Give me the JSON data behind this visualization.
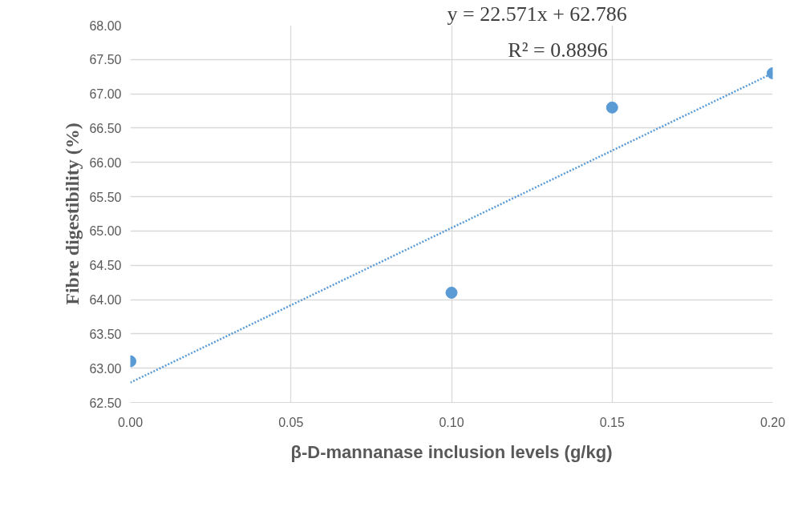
{
  "chart_data": {
    "type": "scatter",
    "xlabel": "β-D-mannanase inclusion levels (g/kg)",
    "ylabel": "Fibre digestibility (%)",
    "x": [
      0,
      0.1,
      0.15,
      0.2
    ],
    "series": [
      {
        "color": "#5b9bd5",
        "values": [
          63.1,
          64.1,
          66.8,
          67.3
        ],
        "marker": "circle"
      },
      {
        "type": "line",
        "color": "#5b9bd5",
        "x": [
          0,
          0.2
        ],
        "values": [
          62.79,
          67.3
        ],
        "line_style": "dotted"
      }
    ],
    "annotations": [
      "y = 22.571x + 62.786",
      "R² = 0.8896"
    ],
    "xlim": [
      0,
      0.2
    ],
    "ylim": [
      62.5,
      68
    ],
    "xticks": [
      {
        "value": 0,
        "label": "0.00"
      },
      {
        "value": 0.05,
        "label": "0.05"
      },
      {
        "value": 0.1,
        "label": "0.10"
      },
      {
        "value": 0.15,
        "label": "0.15"
      },
      {
        "value": 0.2,
        "label": "0.20"
      }
    ],
    "yticks": [
      {
        "value": 62.5,
        "label": "62.50"
      },
      {
        "value": 63,
        "label": "63.00"
      },
      {
        "value": 63.5,
        "label": "63.50"
      },
      {
        "value": 64,
        "label": "64.00"
      },
      {
        "value": 64.5,
        "label": "64.50"
      },
      {
        "value": 65,
        "label": "65.00"
      },
      {
        "value": 65.5,
        "label": "65.50"
      },
      {
        "value": 66,
        "label": "66.00"
      },
      {
        "value": 66.5,
        "label": "66.50"
      },
      {
        "value": 67,
        "label": "67.00"
      },
      {
        "value": 67.5,
        "label": "67.50"
      },
      {
        "value": 68,
        "label": "68.00"
      }
    ],
    "grid": true
  }
}
